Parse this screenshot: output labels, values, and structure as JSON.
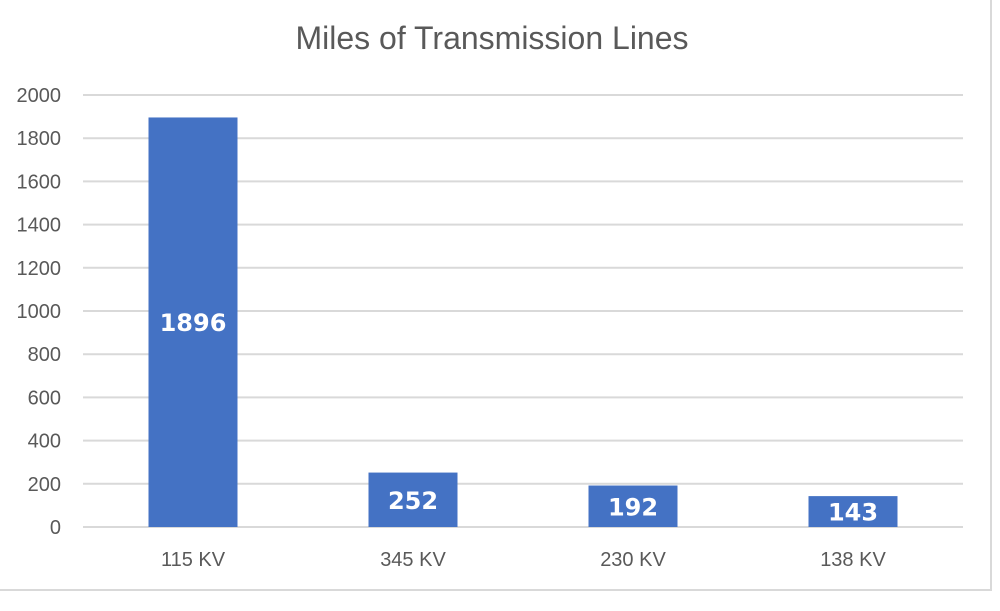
{
  "chart_data": {
    "type": "bar",
    "title": "Miles of Transmission Lines",
    "categories": [
      "115 KV",
      "345 KV",
      "230 KV",
      "138 KV"
    ],
    "values": [
      1896,
      252,
      192,
      143
    ],
    "data_labels": [
      "1896",
      "252",
      "192",
      "143"
    ],
    "xlabel": "",
    "ylabel": "",
    "ylim": [
      0,
      2000
    ],
    "y_ticks": [
      0,
      200,
      400,
      600,
      800,
      1000,
      1200,
      1400,
      1600,
      1800,
      2000
    ],
    "grid": true,
    "legend": "none",
    "bar_color": "#4472c4",
    "grid_color": "#d9d9d9",
    "text_color": "#595959"
  }
}
